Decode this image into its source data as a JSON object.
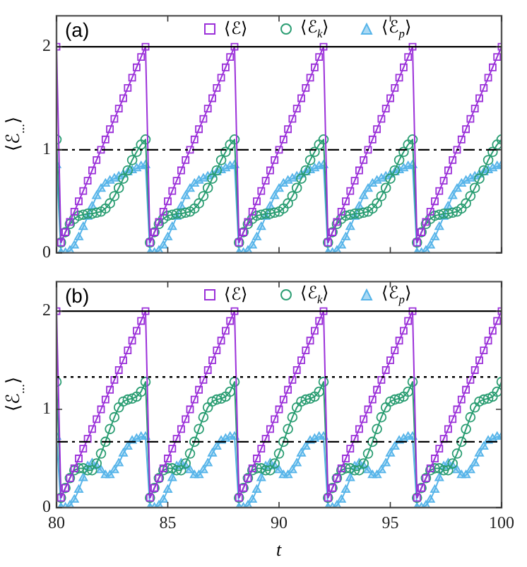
{
  "chart_data": [
    {
      "type": "line",
      "title": "(a)",
      "ylabel": "⟨ℰ$_{...}$⟩",
      "xlim": [
        80,
        100
      ],
      "xticks": [
        {
          "value": 80,
          "label": null
        },
        {
          "value": 85,
          "label": null
        },
        {
          "value": 90,
          "label": null
        },
        {
          "value": 95,
          "label": null
        },
        {
          "value": 100,
          "label": null
        }
      ],
      "ylim": [
        0,
        2.3
      ],
      "yticks": [
        0,
        1,
        2
      ],
      "tick_labels": "y",
      "grid": false,
      "legend": "top",
      "x": [
        80,
        80.2,
        80.4,
        80.6,
        80.8,
        81,
        81.2,
        81.4,
        81.6,
        81.8,
        82,
        82.2,
        82.4,
        82.6,
        82.8,
        83,
        83.2,
        83.4,
        83.6,
        83.8,
        84,
        84.2,
        84.4,
        84.6,
        84.8,
        85,
        85.2,
        85.4,
        85.6,
        85.8,
        86,
        86.2,
        86.4,
        86.6,
        86.8,
        87,
        87.2,
        87.4,
        87.6,
        87.8,
        88,
        88.2,
        88.4,
        88.6,
        88.8,
        89,
        89.2,
        89.4,
        89.6,
        89.8,
        90,
        90.2,
        90.4,
        90.6,
        90.8,
        91,
        91.2,
        91.4,
        91.6,
        91.8,
        92,
        92.2,
        92.4,
        92.6,
        92.8,
        93,
        93.2,
        93.4,
        93.6,
        93.8,
        94,
        94.2,
        94.4,
        94.6,
        94.8,
        95,
        95.2,
        95.4,
        95.6,
        95.8,
        96,
        96.2,
        96.4,
        96.6,
        96.8,
        97,
        97.2,
        97.4,
        97.6,
        97.8,
        98,
        98.2,
        98.4,
        98.6,
        98.8,
        99,
        99.2,
        99.4,
        99.6,
        99.8,
        100
      ],
      "series": [
        {
          "name": "⟨ℰ⟩",
          "color": "#9b30d9",
          "marker": "square",
          "values": [
            2,
            0.1,
            0.2,
            0.3,
            0.4,
            0.5,
            0.6,
            0.7,
            0.8,
            0.9,
            1,
            1.1,
            1.2,
            1.3,
            1.4,
            1.5,
            1.6,
            1.7,
            1.8,
            1.9,
            2,
            0.1,
            0.2,
            0.3,
            0.4,
            0.5,
            0.6,
            0.7,
            0.8,
            0.9,
            1,
            1.1,
            1.2,
            1.3,
            1.4,
            1.5,
            1.6,
            1.7,
            1.8,
            1.9,
            2,
            0.1,
            0.2,
            0.3,
            0.4,
            0.5,
            0.6,
            0.7,
            0.8,
            0.9,
            1,
            1.1,
            1.2,
            1.3,
            1.4,
            1.5,
            1.6,
            1.7,
            1.8,
            1.9,
            2,
            0.1,
            0.2,
            0.3,
            0.4,
            0.5,
            0.6,
            0.7,
            0.8,
            0.9,
            1,
            1.1,
            1.2,
            1.3,
            1.4,
            1.5,
            1.6,
            1.7,
            1.8,
            1.9,
            2,
            0.1,
            0.2,
            0.3,
            0.4,
            0.5,
            0.6,
            0.7,
            0.8,
            0.9,
            1,
            1.1,
            1.2,
            1.3,
            1.4,
            1.5,
            1.6,
            1.7,
            1.8,
            1.9,
            2
          ]
        },
        {
          "name": "⟨ℰ$_{k}$⟩",
          "color": "#2a9d72",
          "marker": "circle",
          "values": [
            1.1,
            0.1,
            0.2,
            0.28,
            0.33,
            0.36,
            0.37,
            0.38,
            0.38,
            0.39,
            0.4,
            0.43,
            0.48,
            0.55,
            0.63,
            0.72,
            0.8,
            0.9,
            0.98,
            1.05,
            1.1,
            0.1,
            0.2,
            0.28,
            0.33,
            0.36,
            0.37,
            0.38,
            0.38,
            0.39,
            0.4,
            0.43,
            0.48,
            0.55,
            0.63,
            0.72,
            0.8,
            0.9,
            0.98,
            1.05,
            1.1,
            0.1,
            0.2,
            0.28,
            0.33,
            0.36,
            0.37,
            0.38,
            0.38,
            0.39,
            0.4,
            0.43,
            0.48,
            0.55,
            0.63,
            0.72,
            0.8,
            0.9,
            0.98,
            1.05,
            1.1,
            0.1,
            0.2,
            0.28,
            0.33,
            0.36,
            0.37,
            0.38,
            0.38,
            0.39,
            0.4,
            0.43,
            0.48,
            0.55,
            0.63,
            0.72,
            0.8,
            0.9,
            0.98,
            1.05,
            1.1,
            0.1,
            0.2,
            0.28,
            0.33,
            0.36,
            0.37,
            0.38,
            0.38,
            0.39,
            0.4,
            0.43,
            0.48,
            0.55,
            0.63,
            0.72,
            0.8,
            0.9,
            0.98,
            1.05,
            1.1
          ]
        },
        {
          "name": "⟨ℰ$_{p}$⟩",
          "color": "#56b4e9",
          "marker": "triangle",
          "values": [
            0.85,
            0,
            0,
            0.02,
            0.07,
            0.15,
            0.25,
            0.35,
            0.45,
            0.55,
            0.62,
            0.67,
            0.7,
            0.72,
            0.74,
            0.76,
            0.78,
            0.8,
            0.82,
            0.84,
            0.85,
            0,
            0,
            0.02,
            0.07,
            0.15,
            0.25,
            0.35,
            0.45,
            0.55,
            0.62,
            0.67,
            0.7,
            0.72,
            0.74,
            0.76,
            0.78,
            0.8,
            0.82,
            0.84,
            0.85,
            0,
            0,
            0.02,
            0.07,
            0.15,
            0.25,
            0.35,
            0.45,
            0.55,
            0.62,
            0.67,
            0.7,
            0.72,
            0.74,
            0.76,
            0.78,
            0.8,
            0.82,
            0.84,
            0.85,
            0,
            0,
            0.02,
            0.07,
            0.15,
            0.25,
            0.35,
            0.45,
            0.55,
            0.62,
            0.67,
            0.7,
            0.72,
            0.74,
            0.76,
            0.78,
            0.8,
            0.82,
            0.84,
            0.85,
            0,
            0,
            0.02,
            0.07,
            0.15,
            0.25,
            0.35,
            0.45,
            0.55,
            0.62,
            0.67,
            0.7,
            0.72,
            0.74,
            0.76,
            0.78,
            0.8,
            0.82,
            0.84,
            0.85
          ]
        }
      ],
      "ref_lines": [
        {
          "axis": "y",
          "value": 2,
          "color": "#000000",
          "line_style": "solid"
        },
        {
          "axis": "y",
          "value": 1,
          "color": "#000000",
          "line_style": "dashdot"
        }
      ]
    },
    {
      "type": "line",
      "title": "(b)",
      "xlabel": "t",
      "ylabel": "⟨ℰ$_{...}$⟩",
      "xlim": [
        80,
        100
      ],
      "xticks": [
        80,
        85,
        90,
        95,
        100
      ],
      "ylim": [
        0,
        2.3
      ],
      "yticks": [
        0,
        1,
        2
      ],
      "grid": false,
      "legend": "top",
      "x": [
        80,
        80.2,
        80.4,
        80.6,
        80.8,
        81,
        81.2,
        81.4,
        81.6,
        81.8,
        82,
        82.2,
        82.4,
        82.6,
        82.8,
        83,
        83.2,
        83.4,
        83.6,
        83.8,
        84,
        84.2,
        84.4,
        84.6,
        84.8,
        85,
        85.2,
        85.4,
        85.6,
        85.8,
        86,
        86.2,
        86.4,
        86.6,
        86.8,
        87,
        87.2,
        87.4,
        87.6,
        87.8,
        88,
        88.2,
        88.4,
        88.6,
        88.8,
        89,
        89.2,
        89.4,
        89.6,
        89.8,
        90,
        90.2,
        90.4,
        90.6,
        90.8,
        91,
        91.2,
        91.4,
        91.6,
        91.8,
        92,
        92.2,
        92.4,
        92.6,
        92.8,
        93,
        93.2,
        93.4,
        93.6,
        93.8,
        94,
        94.2,
        94.4,
        94.6,
        94.8,
        95,
        95.2,
        95.4,
        95.6,
        95.8,
        96,
        96.2,
        96.4,
        96.6,
        96.8,
        97,
        97.2,
        97.4,
        97.6,
        97.8,
        98,
        98.2,
        98.4,
        98.6,
        98.8,
        99,
        99.2,
        99.4,
        99.6,
        99.8,
        100
      ],
      "series": [
        {
          "name": "⟨ℰ⟩",
          "color": "#9b30d9",
          "marker": "square",
          "values": [
            2,
            0.1,
            0.2,
            0.3,
            0.4,
            0.5,
            0.6,
            0.7,
            0.8,
            0.9,
            1,
            1.1,
            1.2,
            1.3,
            1.4,
            1.5,
            1.6,
            1.7,
            1.8,
            1.9,
            2,
            0.1,
            0.2,
            0.3,
            0.4,
            0.5,
            0.6,
            0.7,
            0.8,
            0.9,
            1,
            1.1,
            1.2,
            1.3,
            1.4,
            1.5,
            1.6,
            1.7,
            1.8,
            1.9,
            2,
            0.1,
            0.2,
            0.3,
            0.4,
            0.5,
            0.6,
            0.7,
            0.8,
            0.9,
            1,
            1.1,
            1.2,
            1.3,
            1.4,
            1.5,
            1.6,
            1.7,
            1.8,
            1.9,
            2,
            0.1,
            0.2,
            0.3,
            0.4,
            0.5,
            0.6,
            0.7,
            0.8,
            0.9,
            1,
            1.1,
            1.2,
            1.3,
            1.4,
            1.5,
            1.6,
            1.7,
            1.8,
            1.9,
            2,
            0.1,
            0.2,
            0.3,
            0.4,
            0.5,
            0.6,
            0.7,
            0.8,
            0.9,
            1,
            1.1,
            1.2,
            1.3,
            1.4,
            1.5,
            1.6,
            1.7,
            1.8,
            1.9,
            2
          ]
        },
        {
          "name": "⟨ℰ$_{k}$⟩",
          "color": "#2a9d72",
          "marker": "circle",
          "values": [
            1.28,
            0.1,
            0.2,
            0.3,
            0.38,
            0.4,
            0.4,
            0.38,
            0.38,
            0.45,
            0.55,
            0.67,
            0.8,
            0.92,
            1.02,
            1.08,
            1.1,
            1.11,
            1.13,
            1.18,
            1.28,
            0.1,
            0.2,
            0.3,
            0.38,
            0.4,
            0.4,
            0.38,
            0.38,
            0.45,
            0.55,
            0.67,
            0.8,
            0.92,
            1.02,
            1.08,
            1.1,
            1.11,
            1.13,
            1.18,
            1.28,
            0.1,
            0.2,
            0.3,
            0.38,
            0.4,
            0.4,
            0.38,
            0.38,
            0.45,
            0.55,
            0.67,
            0.8,
            0.92,
            1.02,
            1.08,
            1.1,
            1.11,
            1.13,
            1.18,
            1.28,
            0.1,
            0.2,
            0.3,
            0.38,
            0.4,
            0.4,
            0.38,
            0.38,
            0.45,
            0.55,
            0.67,
            0.8,
            0.92,
            1.02,
            1.08,
            1.1,
            1.11,
            1.13,
            1.18,
            1.28,
            0.1,
            0.2,
            0.3,
            0.38,
            0.4,
            0.4,
            0.38,
            0.38,
            0.45,
            0.55,
            0.67,
            0.8,
            0.92,
            1.02,
            1.08,
            1.1,
            1.11,
            1.13,
            1.18,
            1.28
          ]
        },
        {
          "name": "⟨ℰ$_{p}$⟩",
          "color": "#56b4e9",
          "marker": "triangle",
          "values": [
            0.72,
            0,
            0,
            0.02,
            0.08,
            0.18,
            0.3,
            0.42,
            0.45,
            0.42,
            0.38,
            0.33,
            0.33,
            0.38,
            0.45,
            0.55,
            0.62,
            0.68,
            0.7,
            0.72,
            0.72,
            0,
            0,
            0.02,
            0.08,
            0.18,
            0.3,
            0.42,
            0.45,
            0.42,
            0.38,
            0.33,
            0.33,
            0.38,
            0.45,
            0.55,
            0.62,
            0.68,
            0.7,
            0.72,
            0.72,
            0,
            0,
            0.02,
            0.08,
            0.18,
            0.3,
            0.42,
            0.45,
            0.42,
            0.38,
            0.33,
            0.33,
            0.38,
            0.45,
            0.55,
            0.62,
            0.68,
            0.7,
            0.72,
            0.72,
            0,
            0,
            0.02,
            0.08,
            0.18,
            0.3,
            0.42,
            0.45,
            0.42,
            0.38,
            0.33,
            0.33,
            0.38,
            0.45,
            0.55,
            0.62,
            0.68,
            0.7,
            0.72,
            0.72,
            0,
            0,
            0.02,
            0.08,
            0.18,
            0.3,
            0.42,
            0.45,
            0.42,
            0.38,
            0.33,
            0.33,
            0.38,
            0.45,
            0.55,
            0.62,
            0.68,
            0.7,
            0.72,
            0.72
          ]
        }
      ],
      "ref_lines": [
        {
          "axis": "y",
          "value": 2,
          "color": "#000000",
          "line_style": "solid"
        },
        {
          "axis": "y",
          "value": 1.33,
          "color": "#000000",
          "line_style": "dotted"
        },
        {
          "axis": "y",
          "value": 0.67,
          "color": "#000000",
          "line_style": "dashdot"
        }
      ]
    }
  ]
}
